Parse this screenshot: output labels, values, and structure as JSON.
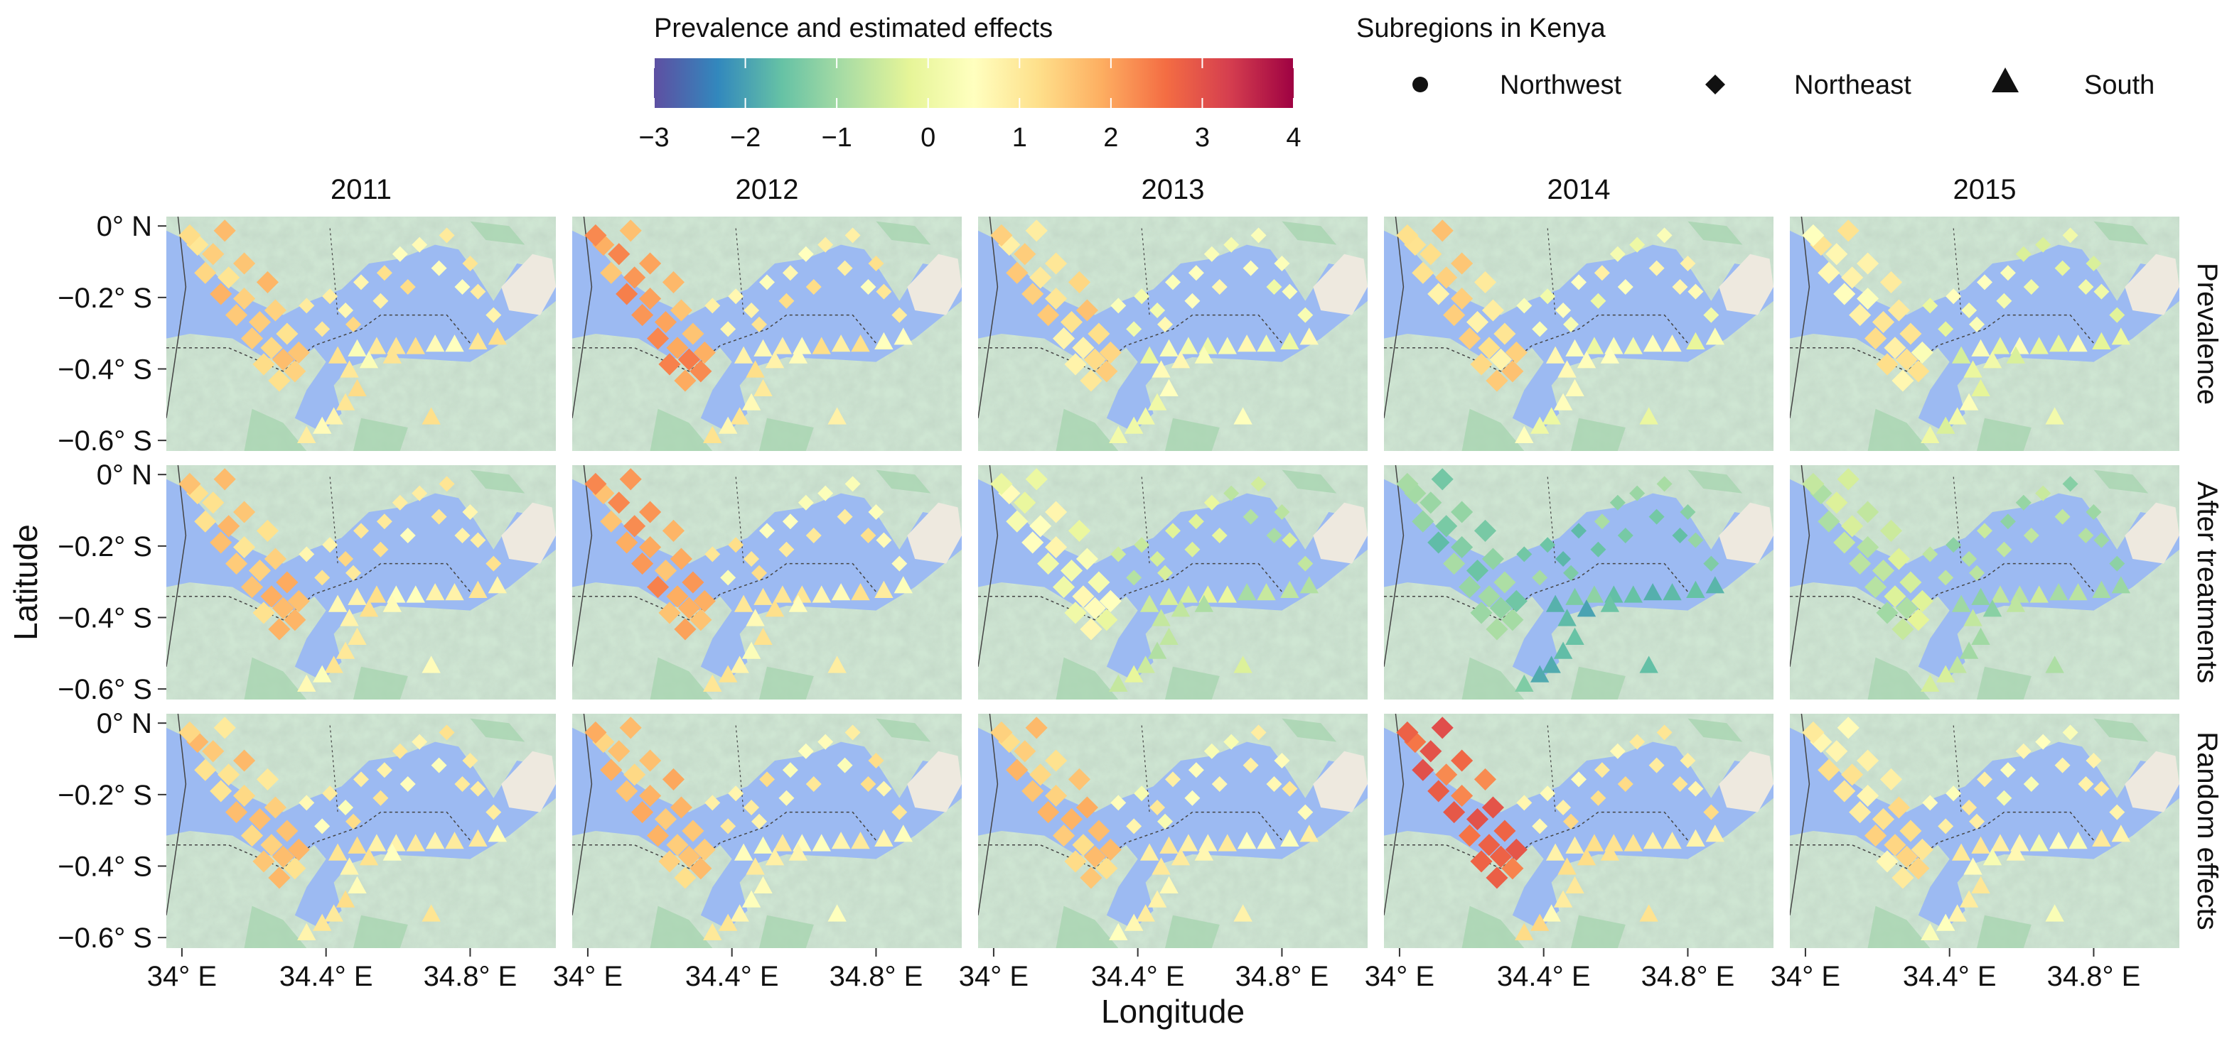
{
  "legend": {
    "colorbar_title": "Prevalence and estimated effects",
    "colorbar_ticks": [
      "−3",
      "−2",
      "−1",
      "0",
      "1",
      "2",
      "3",
      "4"
    ],
    "colorbar_range": [
      -3,
      4
    ],
    "colorbar_colors": [
      "#5e4fa2",
      "#3288bd",
      "#66c2a5",
      "#abdda4",
      "#e6f598",
      "#ffffbf",
      "#fee08b",
      "#fdae61",
      "#f46d43",
      "#d53e4f",
      "#9e0142"
    ],
    "shape_title": "Subregions in Kenya",
    "shapes": [
      {
        "label": "Northwest",
        "icon": "circle-icon"
      },
      {
        "label": "Northeast",
        "icon": "diamond-icon"
      },
      {
        "label": "South",
        "icon": "triangle-icon"
      }
    ]
  },
  "columns": [
    "2011",
    "2012",
    "2013",
    "2014",
    "2015"
  ],
  "rows": [
    "Prevalence",
    "After treatments",
    "Random effects"
  ],
  "axis": {
    "xlabel": "Longitude",
    "ylabel": "Latitude",
    "xticks": [
      "34° E",
      "34.4° E",
      "34.8° E"
    ],
    "yticks": [
      "0° N",
      "−0.2° S",
      "−0.4° S",
      "−0.6° S"
    ]
  },
  "map_colors": {
    "land": "#cfe6d3",
    "water": "#9cbaf2",
    "salt_flat": "#eee9df",
    "border": "#444444"
  },
  "panel_values": [
    {
      "year": "2011",
      "row": "Prevalence",
      "northwest": 1.5,
      "northeast": 0.9,
      "south": 0.8
    },
    {
      "year": "2012",
      "row": "Prevalence",
      "northwest": 2.0,
      "northeast": 0.8,
      "south": 0.8
    },
    {
      "year": "2013",
      "row": "Prevalence",
      "northwest": 1.2,
      "northeast": 0.4,
      "south": 0.3
    },
    {
      "year": "2014",
      "row": "Prevalence",
      "northwest": 1.2,
      "northeast": 0.4,
      "south": 0.3
    },
    {
      "year": "2015",
      "row": "Prevalence",
      "northwest": 0.8,
      "northeast": 0.1,
      "south": 0.0
    },
    {
      "year": "2011",
      "row": "After treatments",
      "northwest": 1.5,
      "northeast": 0.9,
      "south": 0.8
    },
    {
      "year": "2012",
      "row": "After treatments",
      "northwest": 2.0,
      "northeast": 0.8,
      "south": 0.8
    },
    {
      "year": "2013",
      "row": "After treatments",
      "northwest": 0.3,
      "northeast": -0.5,
      "south": -0.5
    },
    {
      "year": "2014",
      "row": "After treatments",
      "northwest": -1.3,
      "northeast": -1.3,
      "south": -1.6
    },
    {
      "year": "2015",
      "row": "After treatments",
      "northwest": -0.6,
      "northeast": -0.9,
      "south": -0.8
    },
    {
      "year": "2011",
      "row": "Random effects",
      "northwest": 1.4,
      "northeast": 0.8,
      "south": 0.8
    },
    {
      "year": "2012",
      "row": "Random effects",
      "northwest": 1.6,
      "northeast": 0.8,
      "south": 0.8
    },
    {
      "year": "2013",
      "row": "Random effects",
      "northwest": 1.5,
      "northeast": 0.7,
      "south": 0.8
    },
    {
      "year": "2014",
      "row": "Random effects",
      "northwest": 2.7,
      "northeast": 1.0,
      "south": 1.0
    },
    {
      "year": "2015",
      "row": "Random effects",
      "northwest": 1.0,
      "northeast": 0.6,
      "south": 0.6
    }
  ]
}
